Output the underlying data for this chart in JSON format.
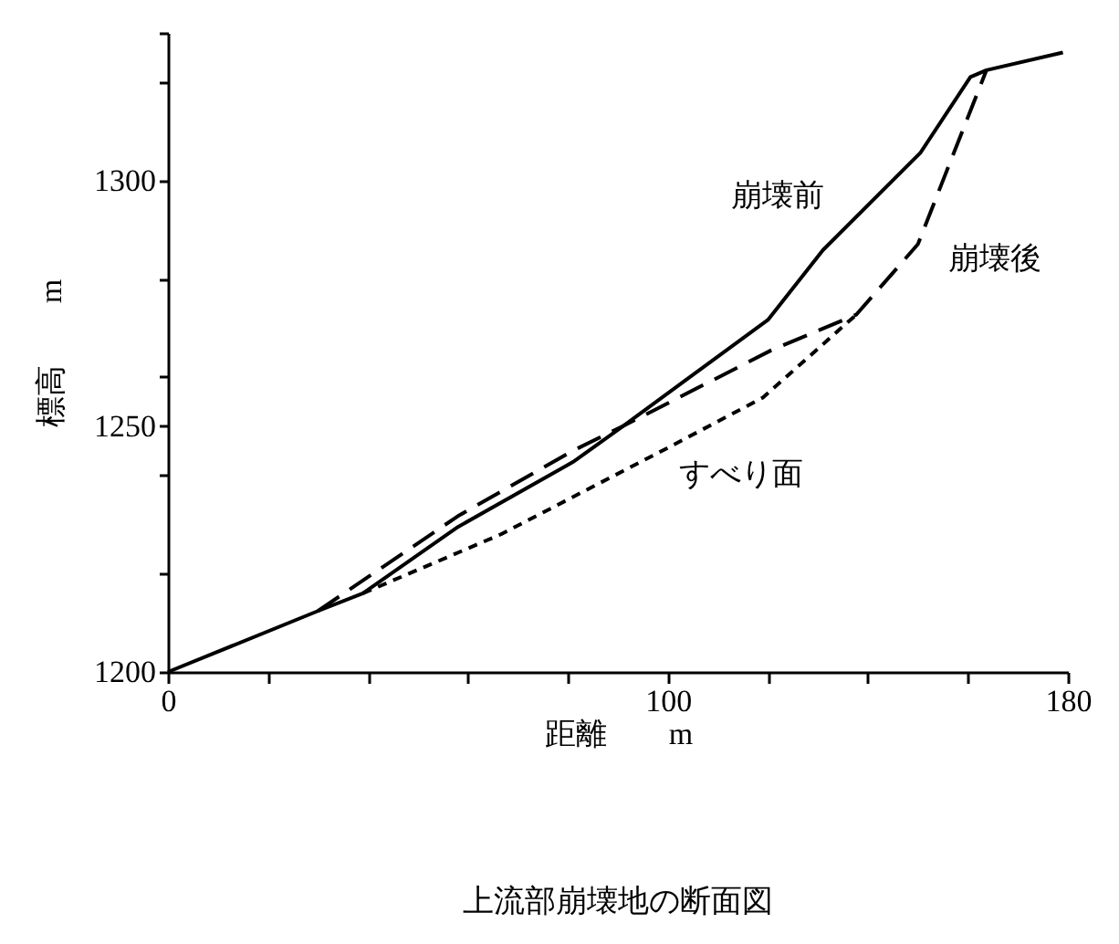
{
  "chart_data": {
    "type": "line",
    "title": "上流部崩壊地の断面図",
    "xlabel": "距離　　m",
    "ylabel": "標高　　m",
    "xlim": [
      0,
      180
    ],
    "ylim": [
      1200,
      1330
    ],
    "xticks": [
      0,
      {
        "value": 20,
        "label": null
      },
      {
        "value": 40,
        "label": null
      },
      {
        "value": 60,
        "label": null
      },
      {
        "value": 80,
        "label": null
      },
      100,
      {
        "value": 120,
        "label": null
      },
      {
        "value": 140,
        "label": null
      },
      {
        "value": 160,
        "label": null
      },
      180
    ],
    "yticks": [
      1200,
      {
        "value": 1220,
        "label": null
      },
      {
        "value": 1240,
        "label": null
      },
      1250,
      {
        "value": 1260,
        "label": null
      },
      {
        "value": 1280,
        "label": null
      },
      1300,
      {
        "value": 1320,
        "label": null
      },
      {
        "value": 1330,
        "label": null
      }
    ],
    "grid": false,
    "marker": "none",
    "series": [
      {
        "name": "崩壊前",
        "color": "#000000",
        "line_style": "solid",
        "x": [
          0,
          30,
          39,
          58,
          81,
          91,
          120,
          131,
          150.5,
          160.5,
          163.7,
          179
        ],
        "values": [
          1200,
          1212.4,
          1216,
          1229.5,
          1242.7,
          1250,
          1271.6,
          1285.8,
          1305.6,
          1321,
          1322.4,
          1326
        ]
      },
      {
        "name": "崩壊後",
        "color": "#000000",
        "line_style": "dashed",
        "x": [
          30,
          58,
          81,
          91,
          120.6,
          137.7,
          150,
          163.7
        ],
        "values": [
          1212.4,
          1231.7,
          1245,
          1250,
          1265.4,
          1272.7,
          1287,
          1322.4
        ]
      },
      {
        "name": "すべり面",
        "color": "#000000",
        "line_style": "dotted",
        "x": [
          39,
          66.6,
          100,
          119,
          137.7
        ],
        "values": [
          1216,
          1228,
          1245.6,
          1255.8,
          1272.7
        ]
      }
    ]
  }
}
